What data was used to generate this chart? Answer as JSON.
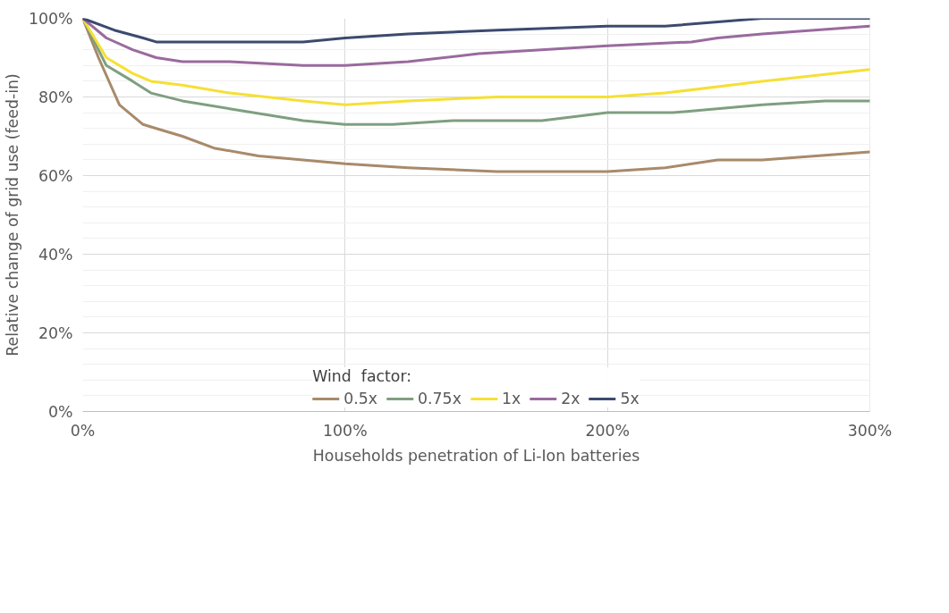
{
  "chart_data": {
    "type": "line",
    "xlabel": "Households penetration of Li-Ion batteries",
    "ylabel": "Relative change of grid use (feed-in)",
    "legend_title": "Wind  factor:",
    "legend": "bottom",
    "grid": true,
    "marker": "none",
    "line_style": "solid",
    "xlim": [
      0,
      300
    ],
    "ylim": [
      0,
      100
    ],
    "xticks": [
      {
        "value": 0,
        "label": "0%"
      },
      {
        "value": 100,
        "label": "100%"
      },
      {
        "value": 200,
        "label": "200%"
      },
      {
        "value": 300,
        "label": "300%"
      }
    ],
    "yticks": [
      {
        "value": 0,
        "label": "0%"
      },
      {
        "value": 20,
        "label": "20%"
      },
      {
        "value": 40,
        "label": "40%"
      },
      {
        "value": 60,
        "label": "60%"
      },
      {
        "value": 80,
        "label": "80%"
      },
      {
        "value": 100,
        "label": "100%"
      }
    ],
    "series": [
      {
        "name": "0.5x",
        "color": "#a88a6a",
        "x": [
          0,
          6,
          14,
          23,
          28,
          38,
          50,
          67,
          100,
          124,
          158,
          200,
          222,
          242,
          259,
          300
        ],
        "values": [
          100,
          90,
          78,
          73,
          72,
          70,
          67,
          65,
          63,
          62,
          61,
          61,
          62,
          64,
          64,
          66
        ]
      },
      {
        "name": "0.75x",
        "color": "#7f9f80",
        "x": [
          0,
          9,
          19,
          26,
          38,
          56,
          84,
          100,
          118,
          141,
          175,
          200,
          225,
          259,
          283,
          300
        ],
        "values": [
          100,
          88,
          84,
          81,
          79,
          77,
          74,
          73,
          73,
          74,
          74,
          76,
          76,
          78,
          79,
          79
        ]
      },
      {
        "name": "1x",
        "color": "#f5e035",
        "x": [
          0,
          9,
          19,
          26,
          38,
          56,
          84,
          100,
          124,
          158,
          200,
          222,
          259,
          300
        ],
        "values": [
          100,
          90,
          86,
          84,
          83,
          81,
          79,
          78,
          79,
          80,
          80,
          81,
          84,
          87
        ]
      },
      {
        "name": "2x",
        "color": "#9a6a9e",
        "x": [
          0,
          9,
          19,
          28,
          38,
          56,
          84,
          100,
          124,
          151,
          200,
          232,
          242,
          259,
          300
        ],
        "values": [
          100,
          95,
          92,
          90,
          89,
          89,
          88,
          88,
          89,
          91,
          93,
          94,
          95,
          96,
          98
        ]
      },
      {
        "name": "5x",
        "color": "#3c4a6e",
        "x": [
          0,
          12,
          23,
          28,
          38,
          60,
          84,
          100,
          124,
          158,
          200,
          222,
          259,
          300
        ],
        "values": [
          100,
          97,
          95,
          94,
          94,
          94,
          94,
          95,
          96,
          97,
          98,
          98,
          100,
          100
        ]
      }
    ]
  }
}
